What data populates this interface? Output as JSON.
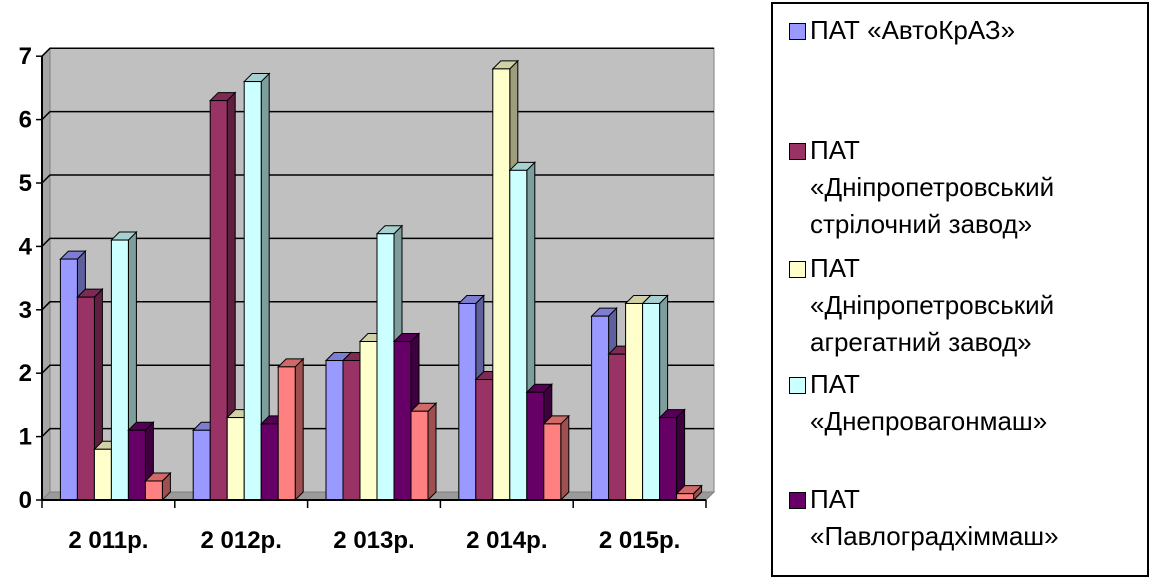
{
  "chart_data": {
    "type": "bar",
    "categories": [
      "2 011р.",
      "2 012р.",
      "2 013р.",
      "2 014р.",
      "2 015р."
    ],
    "series": [
      {
        "name": "ПАТ «АвтоКрАЗ»",
        "values": [
          3.8,
          1.1,
          2.2,
          3.1,
          2.9
        ]
      },
      {
        "name": "ПАТ «Дніпропетровський стрілочний завод»",
        "values": [
          3.2,
          6.3,
          2.2,
          1.9,
          2.3
        ]
      },
      {
        "name": "ПАТ «Дніпропетровський агрегатний завод»",
        "values": [
          0.8,
          1.3,
          2.5,
          6.8,
          3.1
        ]
      },
      {
        "name": "ПАТ «Днепровагонмаш»",
        "values": [
          4.1,
          6.6,
          4.2,
          5.2,
          3.1
        ]
      },
      {
        "name": "ПАТ «Павлоградхіммаш»",
        "values": [
          1.1,
          1.2,
          2.5,
          1.7,
          1.3
        ]
      },
      {
        "name": "",
        "values": [
          0.3,
          2.1,
          1.4,
          1.2,
          0.1
        ]
      }
    ],
    "colors": [
      "#9999ff",
      "#993366",
      "#ffffcc",
      "#ccffff",
      "#660066",
      "#ff8080"
    ],
    "y_ticks": [
      "0",
      "1",
      "2",
      "3",
      "4",
      "5",
      "6",
      "7"
    ],
    "ylim": [
      0,
      7
    ],
    "grid": true,
    "plot_background": "#c0c0c0",
    "legend_position": "right"
  },
  "legend": {
    "items": [
      {
        "label": "ПАТ «АвтоКрАЗ»",
        "color": "#9999ff"
      },
      {
        "label": "ПАТ\n«Дніпропетровський\nстрілочний завод»",
        "color": "#993366"
      },
      {
        "label": "ПАТ\n«Дніпропетровський\nагрегатний завод»",
        "color": "#ffffcc"
      },
      {
        "label": "ПАТ\n«Днепровагонмаш»",
        "color": "#ccffff"
      },
      {
        "label": "ПАТ\n«Павлоградхіммаш»",
        "color": "#660066"
      }
    ]
  }
}
